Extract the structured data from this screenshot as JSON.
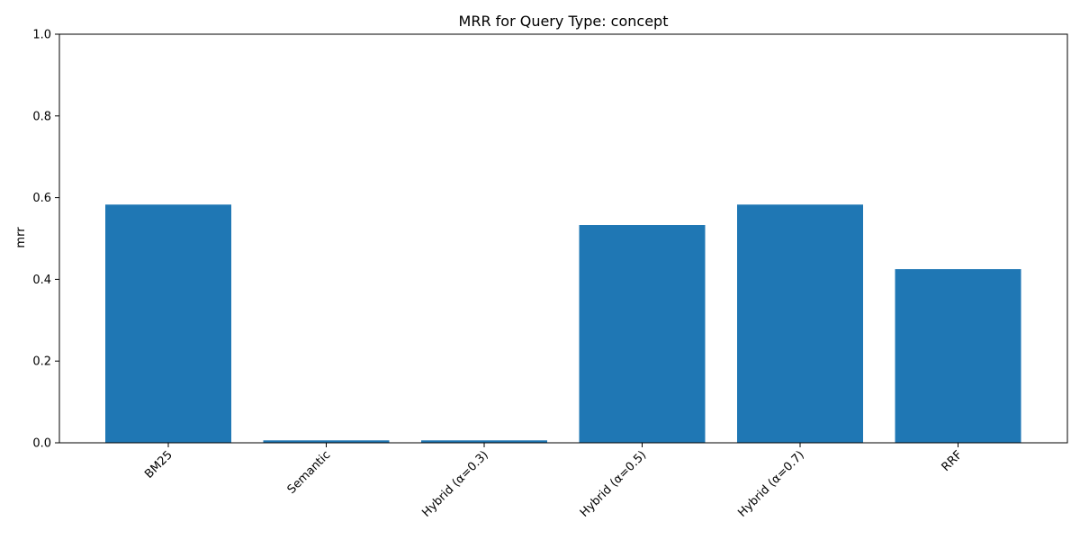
{
  "chart_data": {
    "type": "bar",
    "title": "MRR for Query Type: concept",
    "xlabel": "",
    "ylabel": "mrr",
    "categories": [
      "BM25",
      "Semantic",
      "Hybrid (α=0.3)",
      "Hybrid (α=0.5)",
      "Hybrid (α=0.7)",
      "RRF"
    ],
    "values": [
      0.583,
      0.006,
      0.006,
      0.533,
      0.583,
      0.425
    ],
    "ylim": [
      0,
      1.0
    ],
    "yticks": [
      "0.0",
      "0.2",
      "0.4",
      "0.6",
      "0.8",
      "1.0"
    ],
    "grid": false,
    "bar_color": "#1f77b4"
  }
}
